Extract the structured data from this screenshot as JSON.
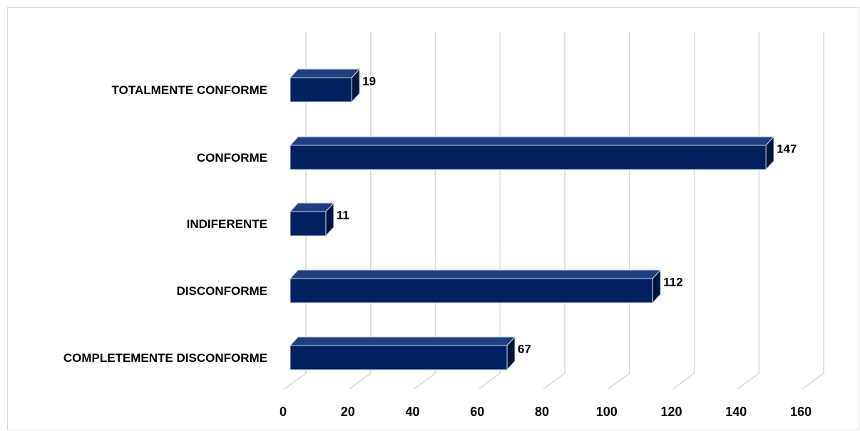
{
  "chart_data": {
    "type": "bar",
    "orientation": "horizontal",
    "style": "3d",
    "categories": [
      "TOTALMENTE CONFORME",
      "CONFORME",
      "INDIFERENTE",
      "DISCONFORME",
      "COMPLETEMENTE DISCONFORME"
    ],
    "values": [
      19,
      147,
      11,
      112,
      67
    ],
    "xlim": [
      0,
      160
    ],
    "xticks": [
      0,
      20,
      40,
      60,
      80,
      100,
      120,
      140,
      160
    ],
    "title": "",
    "xlabel": "",
    "ylabel": "",
    "grid": true,
    "legend": "none",
    "colors": {
      "bar_front": "#002060",
      "bar_top": "#1f3f7f",
      "bar_side": "#00143d",
      "bar_edge": "#c9d3e6",
      "grid": "#d9d9d9"
    }
  }
}
